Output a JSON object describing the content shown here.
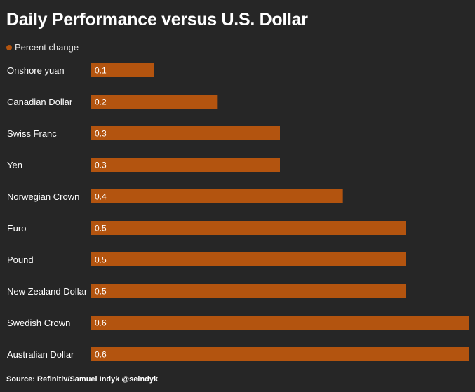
{
  "chart_data": {
    "type": "bar",
    "orientation": "horizontal",
    "title": "Daily Performance versus U.S. Dollar",
    "legend": "top-left",
    "series": [
      {
        "name": "Percent change",
        "color": "#b3540f",
        "values": [
          0.1,
          0.2,
          0.3,
          0.3,
          0.4,
          0.5,
          0.5,
          0.5,
          0.6,
          0.6
        ]
      }
    ],
    "categories": [
      "Onshore yuan",
      "Canadian Dollar",
      "Swiss Franc",
      "Yen",
      "Norwegian Crown",
      "Euro",
      "Pound",
      "New Zealand Dollar",
      "Swedish Crown",
      "Australian Dollar"
    ],
    "value_labels": [
      "0.1",
      "0.2",
      "0.3",
      "0.3",
      "0.4",
      "0.5",
      "0.5",
      "0.5",
      "0.6",
      "0.6"
    ],
    "xlim": [
      0,
      0.6
    ],
    "grid": false
  },
  "source": "Source: Refinitiv/Samuel Indyk @seindyk"
}
